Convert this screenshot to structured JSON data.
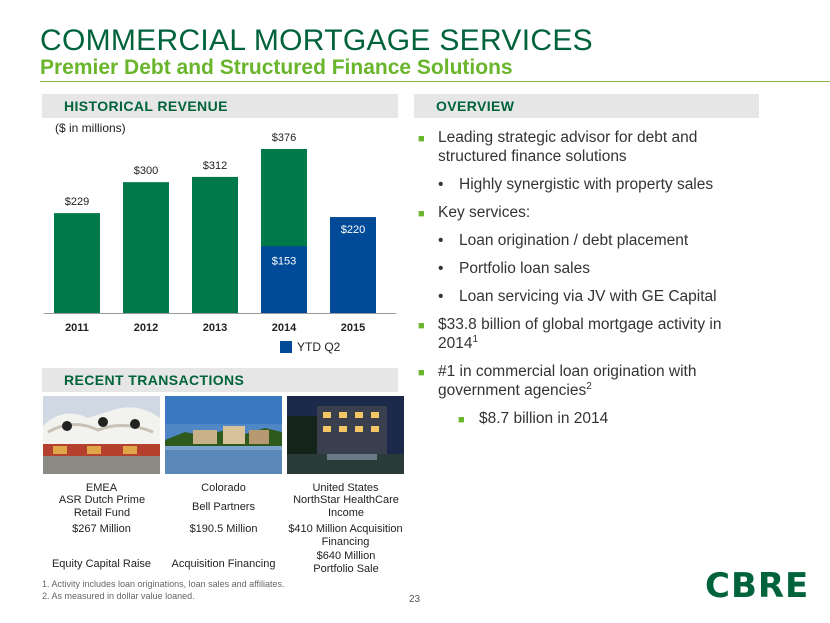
{
  "header": {
    "title": "COMMERCIAL MORTGAGE SERVICES",
    "subtitle": "Premier Debt and Structured Finance Solutions"
  },
  "sections": {
    "historical_revenue": "HISTORICAL REVENUE",
    "overview": "OVERVIEW",
    "recent_transactions": "RECENT TRANSACTIONS"
  },
  "chart_data": {
    "type": "bar",
    "units_note": "($ in millions)",
    "categories": [
      "2011",
      "2012",
      "2013",
      "2014",
      "2015"
    ],
    "series": [
      {
        "name": "",
        "values": [
          229,
          300,
          312,
          376,
          null
        ]
      },
      {
        "name": "YTD Q2",
        "values": [
          null,
          null,
          null,
          153,
          220
        ]
      }
    ],
    "data_labels": [
      "$229",
      "$300",
      "$312",
      "$376",
      "$220"
    ],
    "inner_labels": {
      "2014": "$153"
    },
    "ylim": [
      0,
      376
    ],
    "colors": {
      "annual": "#00794a",
      "ytd": "#004a97"
    },
    "legend": {
      "label": "YTD Q2",
      "placement": "bottom-right"
    }
  },
  "overview": {
    "items": [
      {
        "level": 1,
        "text": "Leading strategic advisor for debt and structured finance solutions"
      },
      {
        "level": 2,
        "text": "Highly synergistic with property sales"
      },
      {
        "level": 1,
        "text": "Key services:"
      },
      {
        "level": 2,
        "text": "Loan origination / debt placement"
      },
      {
        "level": 2,
        "text": "Portfolio loan sales"
      },
      {
        "level": 2,
        "text": "Loan servicing via JV with GE Capital"
      },
      {
        "level": 1,
        "text": "$33.8 billion of global mortgage activity in 2014",
        "sup": "1"
      },
      {
        "level": 1,
        "text": "#1 in commercial loan origination with government agencies",
        "sup": "2"
      },
      {
        "level": 3,
        "text": "$8.7 billion in 2014"
      }
    ]
  },
  "transactions": [
    {
      "region": "EMEA",
      "client": "ASR Dutch Prime Retail Fund",
      "amount": "$267 Million",
      "type": "Equity Capital Raise"
    },
    {
      "region": "Colorado",
      "client": "Bell Partners",
      "amount": "$190.5 Million",
      "type": "Acquisition Financing"
    },
    {
      "region": "United States",
      "client": "NorthStar HealthCare Income",
      "amount": "$410 Million Acquisition Financing",
      "type": "$640 Million Portfolio Sale"
    }
  ],
  "footnotes": [
    "1.  Activity includes loan originations, loan sales and affiliates.",
    "2.  As measured in dollar value loaned."
  ],
  "page_number": "23",
  "logo_text": "CBRE",
  "icons": {
    "bullet_primary": "green-square-bullet",
    "bullet_secondary": "dot-bullet"
  }
}
